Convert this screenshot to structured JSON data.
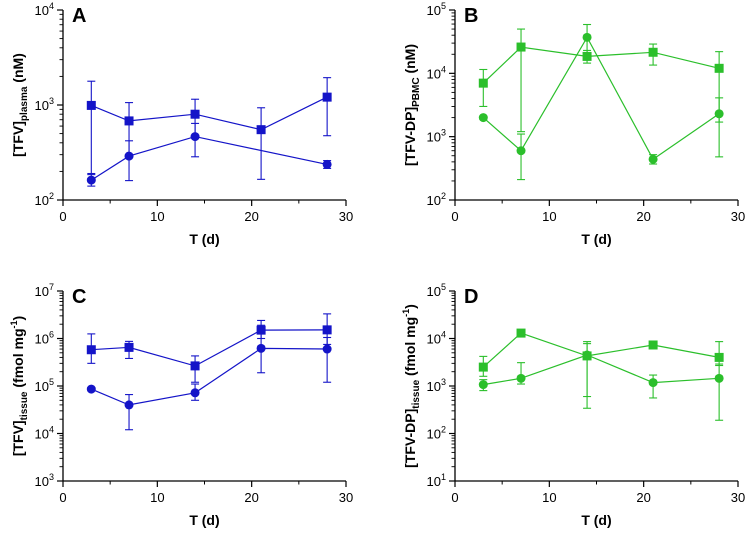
{
  "figure": {
    "x_axis_title": "T (d)"
  },
  "chart_data": [
    {
      "type": "scatter",
      "panel": "A",
      "title": "A",
      "color": "#1414c8",
      "xlabel": "T (d)",
      "ylabel_main": "[TFV]",
      "ylabel_sub": "plasma",
      "ylabel_suffix": " (nM)",
      "yscale": "log",
      "xlim": [
        0,
        30
      ],
      "ylim": [
        100,
        10000
      ],
      "xticks": [
        0,
        10,
        20,
        30
      ],
      "yticks": [
        {
          "value": 100,
          "base": "10",
          "exp": "2"
        },
        {
          "value": 1000,
          "base": "10",
          "exp": "3"
        },
        {
          "value": 10000,
          "base": "10",
          "exp": "4"
        }
      ],
      "series": [
        {
          "name": "squares",
          "marker": "square",
          "points": [
            {
              "x": 3,
              "y": 990,
              "lo": 185,
              "hi": 1780
            },
            {
              "x": 7,
              "y": 680,
              "lo": 300,
              "hi": 1060
            },
            {
              "x": 14,
              "y": 800,
              "lo": 455,
              "hi": 1150
            },
            {
              "x": 21,
              "y": 550,
              "lo": 165,
              "hi": 935
            },
            {
              "x": 28,
              "y": 1210,
              "lo": 475,
              "hi": 1940
            }
          ]
        },
        {
          "name": "circles",
          "marker": "circle",
          "points": [
            {
              "x": 3,
              "y": 162,
              "lo": 140,
              "hi": 190
            },
            {
              "x": 7,
              "y": 290,
              "lo": 160,
              "hi": 420
            },
            {
              "x": 14,
              "y": 465,
              "lo": 285,
              "hi": 640
            },
            {
              "x": 28,
              "y": 237,
              "lo": 215,
              "hi": 260
            }
          ]
        }
      ]
    },
    {
      "type": "scatter",
      "panel": "B",
      "title": "B",
      "color": "#2bbf2b",
      "xlabel": "T (d)",
      "ylabel_main": "[TFV-DP]",
      "ylabel_sub": "PBMC",
      "ylabel_suffix": " (nM)",
      "yscale": "log",
      "xlim": [
        0,
        30
      ],
      "ylim": [
        100,
        100000
      ],
      "xticks": [
        0,
        10,
        20,
        30
      ],
      "yticks": [
        {
          "value": 100,
          "base": "10",
          "exp": "2"
        },
        {
          "value": 1000,
          "base": "10",
          "exp": "3"
        },
        {
          "value": 10000,
          "base": "10",
          "exp": "4"
        },
        {
          "value": 100000,
          "base": "10",
          "exp": "5"
        }
      ],
      "series": [
        {
          "name": "squares",
          "marker": "square",
          "points": [
            {
              "x": 3,
              "y": 7000,
              "lo": 3000,
              "hi": 11500
            },
            {
              "x": 7,
              "y": 26000,
              "lo": 1200,
              "hi": 50000
            },
            {
              "x": 14,
              "y": 18500,
              "lo": 14500,
              "hi": 23000
            },
            {
              "x": 21,
              "y": 21500,
              "lo": 13500,
              "hi": 29000
            },
            {
              "x": 28,
              "y": 12000,
              "lo": 1700,
              "hi": 22000
            }
          ]
        },
        {
          "name": "circles",
          "marker": "circle",
          "points": [
            {
              "x": 3,
              "y": 2000,
              "lo": 2000,
              "hi": 2000
            },
            {
              "x": 7,
              "y": 600,
              "lo": 210,
              "hi": 1100
            },
            {
              "x": 14,
              "y": 37000,
              "lo": 17000,
              "hi": 59000
            },
            {
              "x": 21,
              "y": 440,
              "lo": 370,
              "hi": 520
            },
            {
              "x": 28,
              "y": 2300,
              "lo": 480,
              "hi": 4100
            }
          ]
        }
      ]
    },
    {
      "type": "scatter",
      "panel": "C",
      "title": "C",
      "color": "#1414c8",
      "xlabel": "T (d)",
      "ylabel_main": "[TFV]",
      "ylabel_sub": "tissue",
      "ylabel_suffix": " (fmol mg",
      "ylabel_sup": "-1",
      "ylabel_close": ")",
      "yscale": "log",
      "xlim": [
        0,
        30
      ],
      "ylim": [
        1000,
        10000000
      ],
      "xticks": [
        0,
        10,
        20,
        30
      ],
      "yticks": [
        {
          "value": 1000,
          "base": "10",
          "exp": "3"
        },
        {
          "value": 10000,
          "base": "10",
          "exp": "4"
        },
        {
          "value": 100000,
          "base": "10",
          "exp": "5"
        },
        {
          "value": 1000000,
          "base": "10",
          "exp": "6"
        },
        {
          "value": 10000000,
          "base": "10",
          "exp": "7"
        }
      ],
      "series": [
        {
          "name": "squares",
          "marker": "square",
          "points": [
            {
              "x": 3,
              "y": 580000,
              "lo": 300000,
              "hi": 1250000
            },
            {
              "x": 7,
              "y": 650000,
              "lo": 380000,
              "hi": 870000
            },
            {
              "x": 14,
              "y": 265000,
              "lo": 120000,
              "hi": 430000
            },
            {
              "x": 21,
              "y": 1500000,
              "lo": 1000000,
              "hi": 2400000
            },
            {
              "x": 28,
              "y": 1520000,
              "lo": 750000,
              "hi": 3300000
            }
          ]
        },
        {
          "name": "circles",
          "marker": "circle",
          "points": [
            {
              "x": 3,
              "y": 86000,
              "lo": 86000,
              "hi": 86000
            },
            {
              "x": 7,
              "y": 40000,
              "lo": 12000,
              "hi": 66000
            },
            {
              "x": 14,
              "y": 72000,
              "lo": 50000,
              "hi": 110000
            },
            {
              "x": 21,
              "y": 620000,
              "lo": 190000,
              "hi": 1900000
            },
            {
              "x": 28,
              "y": 600000,
              "lo": 120000,
              "hi": 1050000
            }
          ]
        }
      ]
    },
    {
      "type": "scatter",
      "panel": "D",
      "title": "D",
      "color": "#2bbf2b",
      "xlabel": "T (d)",
      "ylabel_main": "[TFV-DP]",
      "ylabel_sub": "tissue",
      "ylabel_suffix": " (fmol mg",
      "ylabel_sup": "-1",
      "ylabel_close": ")",
      "yscale": "log",
      "xlim": [
        0,
        30
      ],
      "ylim": [
        10,
        100000
      ],
      "xticks": [
        0,
        10,
        20,
        30
      ],
      "yticks": [
        {
          "value": 10,
          "base": "10",
          "exp": "1"
        },
        {
          "value": 100,
          "base": "10",
          "exp": "2"
        },
        {
          "value": 1000,
          "base": "10",
          "exp": "3"
        },
        {
          "value": 10000,
          "base": "10",
          "exp": "4"
        },
        {
          "value": 100000,
          "base": "10",
          "exp": "5"
        }
      ],
      "series": [
        {
          "name": "squares",
          "marker": "square",
          "points": [
            {
              "x": 3,
              "y": 2500,
              "lo": 1600,
              "hi": 4200
            },
            {
              "x": 7,
              "y": 13000,
              "lo": 10800,
              "hi": 14500
            },
            {
              "x": 14,
              "y": 4300,
              "lo": 600,
              "hi": 7800
            },
            {
              "x": 21,
              "y": 7300,
              "lo": 7300,
              "hi": 7300
            },
            {
              "x": 28,
              "y": 4000,
              "lo": 2700,
              "hi": 8600
            }
          ]
        },
        {
          "name": "circles",
          "marker": "circle",
          "points": [
            {
              "x": 3,
              "y": 1070,
              "lo": 800,
              "hi": 1360
            },
            {
              "x": 7,
              "y": 1450,
              "lo": 1100,
              "hi": 3100
            },
            {
              "x": 14,
              "y": 4500,
              "lo": 340,
              "hi": 8600
            },
            {
              "x": 21,
              "y": 1180,
              "lo": 560,
              "hi": 1700
            },
            {
              "x": 28,
              "y": 1450,
              "lo": 190,
              "hi": 2900
            }
          ]
        }
      ]
    }
  ]
}
